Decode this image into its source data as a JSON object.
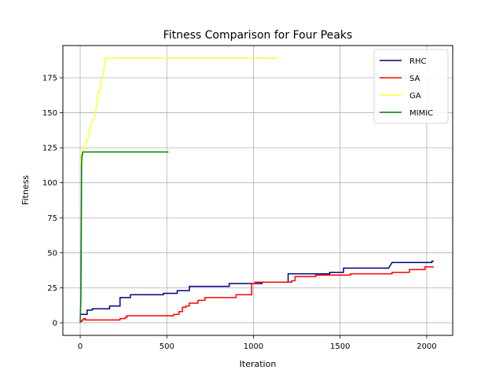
{
  "chart_data": {
    "type": "line",
    "title": "Fitness Comparison for Four Peaks",
    "xlabel": "Iteration",
    "ylabel": "Fitness",
    "xlim": [
      -100,
      2150
    ],
    "ylim": [
      -9,
      198
    ],
    "xticks": [
      0,
      500,
      1000,
      1500,
      2000
    ],
    "yticks": [
      0,
      25,
      50,
      75,
      100,
      125,
      150,
      175
    ],
    "grid": true,
    "legend_position": "top-right",
    "series": [
      {
        "name": "RHC",
        "color": "#000080",
        "points": [
          [
            0,
            6
          ],
          [
            40,
            6
          ],
          [
            40,
            9
          ],
          [
            70,
            9
          ],
          [
            70,
            10
          ],
          [
            170,
            10
          ],
          [
            170,
            12
          ],
          [
            230,
            12
          ],
          [
            230,
            18
          ],
          [
            290,
            18
          ],
          [
            290,
            20
          ],
          [
            480,
            20
          ],
          [
            480,
            21
          ],
          [
            560,
            21
          ],
          [
            560,
            23
          ],
          [
            630,
            23
          ],
          [
            630,
            26
          ],
          [
            860,
            26
          ],
          [
            860,
            28
          ],
          [
            1050,
            28
          ],
          [
            1050,
            29
          ],
          [
            1200,
            29
          ],
          [
            1200,
            35
          ],
          [
            1440,
            35
          ],
          [
            1440,
            36
          ],
          [
            1520,
            36
          ],
          [
            1520,
            39
          ],
          [
            1780,
            39
          ],
          [
            1800,
            43
          ],
          [
            2030,
            43
          ],
          [
            2030,
            44
          ],
          [
            2040,
            44
          ]
        ]
      },
      {
        "name": "SA",
        "color": "#ff0000",
        "points": [
          [
            0,
            1
          ],
          [
            10,
            1
          ],
          [
            10,
            2
          ],
          [
            20,
            2
          ],
          [
            20,
            3
          ],
          [
            30,
            3
          ],
          [
            30,
            2
          ],
          [
            230,
            2
          ],
          [
            230,
            3
          ],
          [
            260,
            3
          ],
          [
            260,
            4
          ],
          [
            270,
            4
          ],
          [
            270,
            5
          ],
          [
            540,
            5
          ],
          [
            540,
            6
          ],
          [
            570,
            6
          ],
          [
            570,
            8
          ],
          [
            590,
            8
          ],
          [
            590,
            11
          ],
          [
            610,
            11
          ],
          [
            610,
            12
          ],
          [
            630,
            12
          ],
          [
            630,
            14
          ],
          [
            680,
            14
          ],
          [
            680,
            16
          ],
          [
            720,
            16
          ],
          [
            720,
            18
          ],
          [
            900,
            18
          ],
          [
            900,
            20
          ],
          [
            990,
            20
          ],
          [
            990,
            28
          ],
          [
            1010,
            28
          ],
          [
            1010,
            29
          ],
          [
            1220,
            29
          ],
          [
            1220,
            30
          ],
          [
            1240,
            30
          ],
          [
            1240,
            33
          ],
          [
            1360,
            33
          ],
          [
            1360,
            34
          ],
          [
            1560,
            34
          ],
          [
            1560,
            35
          ],
          [
            1800,
            35
          ],
          [
            1800,
            36
          ],
          [
            1900,
            36
          ],
          [
            1900,
            38
          ],
          [
            1990,
            38
          ],
          [
            1990,
            40
          ],
          [
            2040,
            40
          ]
        ]
      },
      {
        "name": "GA",
        "color": "#ffff33",
        "points": [
          [
            0,
            113
          ],
          [
            10,
            122
          ],
          [
            20,
            125
          ],
          [
            30,
            128
          ],
          [
            40,
            130
          ],
          [
            50,
            134
          ],
          [
            60,
            141
          ],
          [
            70,
            144
          ],
          [
            80,
            146
          ],
          [
            90,
            152
          ],
          [
            100,
            159
          ],
          [
            105,
            166
          ],
          [
            115,
            166
          ],
          [
            120,
            172
          ],
          [
            125,
            175
          ],
          [
            130,
            176
          ],
          [
            135,
            179
          ],
          [
            140,
            184
          ],
          [
            145,
            189
          ],
          [
            1140,
            189
          ]
        ]
      },
      {
        "name": "MIMIC",
        "color": "#008000",
        "points": [
          [
            0,
            0
          ],
          [
            2,
            10
          ],
          [
            4,
            17
          ],
          [
            6,
            60
          ],
          [
            8,
            112
          ],
          [
            10,
            118
          ],
          [
            15,
            122
          ],
          [
            510,
            122
          ]
        ]
      }
    ]
  }
}
